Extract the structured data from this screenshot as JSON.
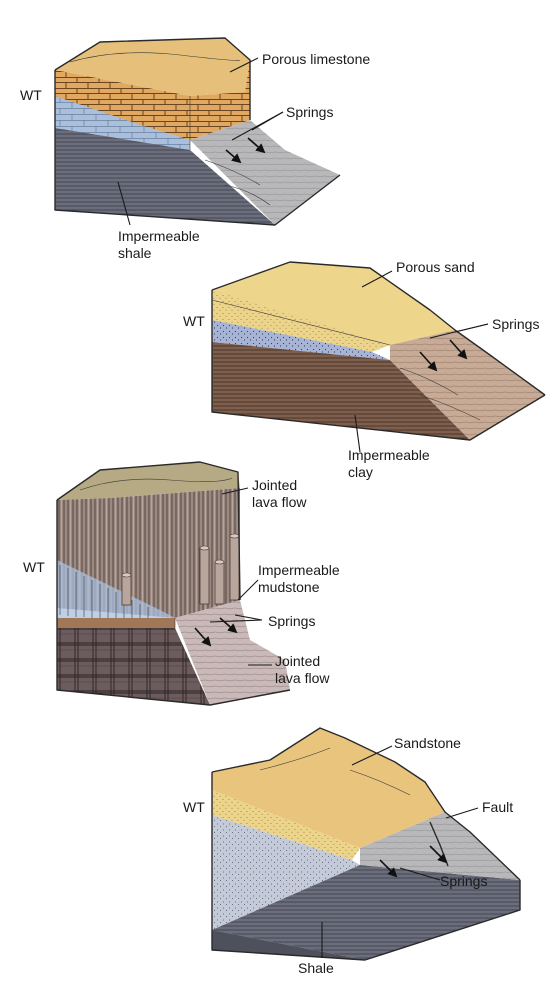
{
  "panels": [
    {
      "wt_label": "WT",
      "labels": {
        "rock_top": "Porous limestone",
        "springs": "Springs",
        "rock_bottom_line1": "Impermeable",
        "rock_bottom_line2": "shale"
      },
      "colors": {
        "top": "#e8c27a",
        "aquifer": "#a9bfdd",
        "base": "#6d7080",
        "slope": "#b9b9bb"
      }
    },
    {
      "wt_label": "WT",
      "labels": {
        "rock_top": "Porous sand",
        "springs": "Springs",
        "rock_bottom_line1": "Impermeable",
        "rock_bottom_line2": "clay"
      },
      "colors": {
        "top": "#ecd48a",
        "aquifer": "#a7b4d6",
        "base": "#7a5a4a",
        "slope": "#c4a894"
      }
    },
    {
      "wt_label": "WT",
      "labels": {
        "rock_top_line1": "Jointed",
        "rock_top_line2": "lava flow",
        "middle_line1": "Impermeable",
        "middle_line2": "mudstone",
        "springs": "Springs",
        "rock_bottom_line1": "Jointed",
        "rock_bottom_line2": "lava flow"
      },
      "colors": {
        "top": "#b8ad86",
        "columns": "#9c8a82",
        "aquifer": "#a9bfdd",
        "base": "#6e5e60",
        "slope": "#c5b6b4"
      }
    },
    {
      "wt_label": "WT",
      "labels": {
        "rock_top": "Sandstone",
        "fault": "Fault",
        "springs": "Springs",
        "rock_bottom": "Shale"
      },
      "colors": {
        "top": "#e8c27a",
        "aquifer": "#c2c8d6",
        "base": "#5f6270",
        "slope": "#c8c8cc"
      }
    }
  ]
}
